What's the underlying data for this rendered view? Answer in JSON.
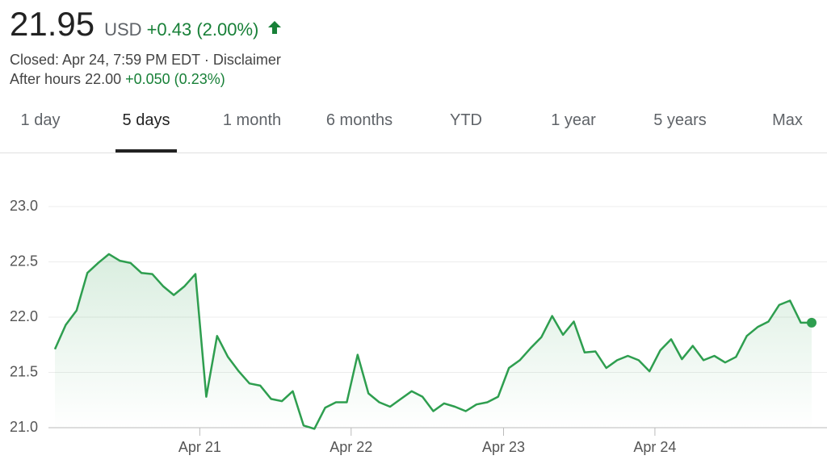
{
  "header": {
    "price": "21.95",
    "currency": "USD",
    "change": "+0.43 (2.00%)",
    "closed": "Closed: Apr 24, 7:59 PM EDT",
    "separator": "·",
    "disclaimer": "Disclaimer",
    "after_hours_label": "After hours",
    "after_hours_price": "22.00",
    "after_hours_change": "+0.050 (0.23%)"
  },
  "tabs": {
    "items": [
      "1 day",
      "5 days",
      "1 month",
      "6 months",
      "YTD",
      "1 year",
      "5 years",
      "Max"
    ],
    "selected": 1
  },
  "chart_data": {
    "type": "line",
    "color": "#2e9e4f",
    "grid": true,
    "values": [
      21.71,
      21.93,
      22.06,
      22.4,
      22.49,
      22.57,
      22.51,
      22.49,
      22.4,
      22.39,
      22.28,
      22.2,
      22.28,
      22.39,
      21.28,
      21.83,
      21.64,
      21.51,
      21.4,
      21.38,
      21.26,
      21.24,
      21.33,
      21.02,
      20.99,
      21.18,
      21.23,
      21.23,
      21.66,
      21.31,
      21.23,
      21.19,
      21.26,
      21.33,
      21.28,
      21.15,
      21.22,
      21.19,
      21.15,
      21.21,
      21.23,
      21.28,
      21.54,
      21.61,
      21.72,
      21.82,
      22.01,
      21.84,
      21.96,
      21.68,
      21.69,
      21.54,
      21.61,
      21.65,
      21.61,
      21.51,
      21.7,
      21.8,
      21.62,
      21.74,
      21.61,
      21.65,
      21.59,
      21.64,
      21.83,
      21.91,
      21.96,
      22.11,
      22.15,
      21.95,
      21.95
    ],
    "xlim": [
      0,
      70
    ],
    "xticks": [
      {
        "value": 13.4,
        "label": "Apr 21"
      },
      {
        "value": 27.4,
        "label": "Apr 22"
      },
      {
        "value": 41.5,
        "label": "Apr 23"
      },
      {
        "value": 55.5,
        "label": "Apr 24"
      }
    ],
    "ylim": [
      21,
      23
    ],
    "yticks": [
      {
        "value": 21,
        "label": "21.0"
      },
      {
        "value": 21.5,
        "label": "21.5"
      },
      {
        "value": 22,
        "label": "22.0"
      },
      {
        "value": 22.5,
        "label": "22.5"
      },
      {
        "value": 23,
        "label": "23.0"
      }
    ]
  }
}
